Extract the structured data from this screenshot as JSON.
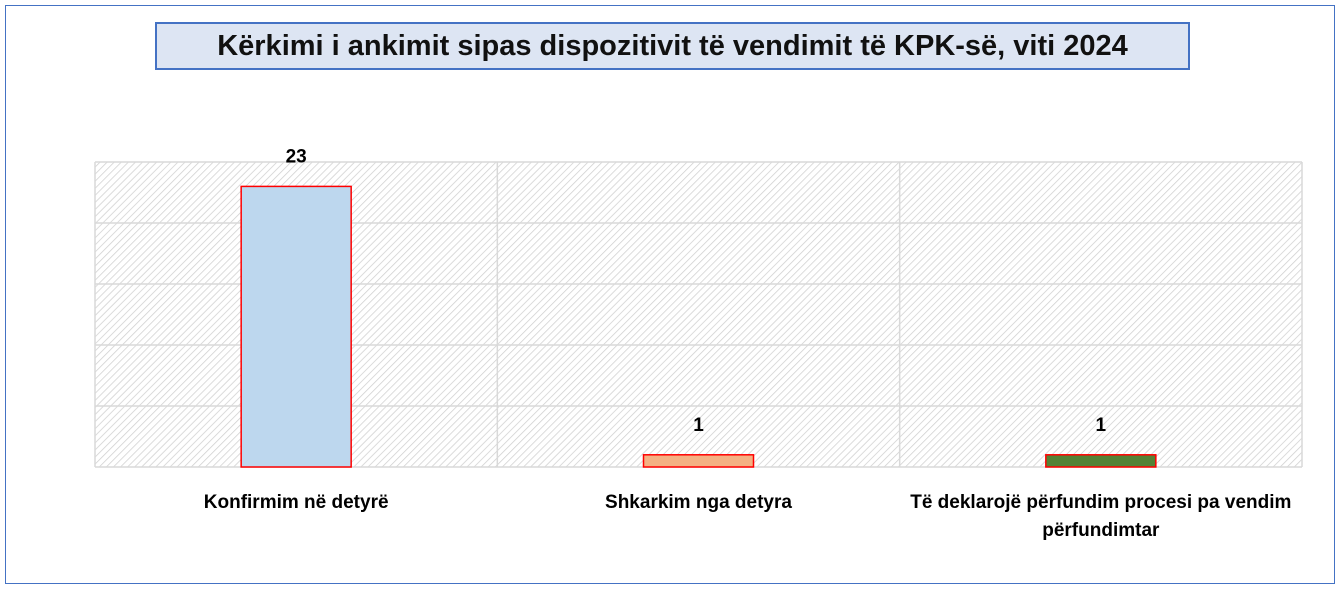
{
  "chart_data": {
    "type": "bar",
    "title": "Kërkimi i ankimit sipas dispozitivit të vendimit të KPK-së, viti 2024",
    "categories": [
      "Konfirmim në detyrë",
      "Shkarkim nga detyra",
      "Të deklarojë përfundim procesi pa vendim përfundimtar"
    ],
    "values": [
      23,
      1,
      1
    ],
    "colors": [
      "#bdd7ee",
      "#f4b183",
      "#548235"
    ],
    "edge_color": "#ff0000",
    "ylim": [
      0,
      25
    ],
    "yticks": [
      0,
      5,
      10,
      15,
      20,
      25
    ],
    "grid": true
  }
}
